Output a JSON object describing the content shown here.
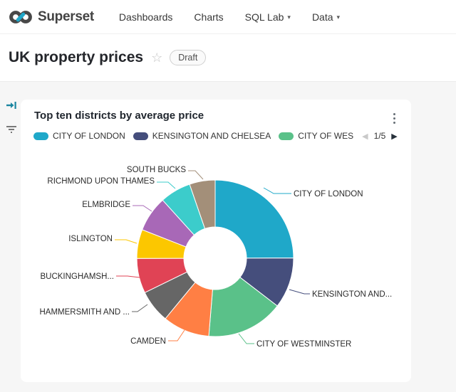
{
  "navbar": {
    "brand": "Superset",
    "items": [
      {
        "label": "Dashboards",
        "has_caret": false
      },
      {
        "label": "Charts",
        "has_caret": false
      },
      {
        "label": "SQL Lab",
        "has_caret": true
      },
      {
        "label": "Data",
        "has_caret": true
      }
    ]
  },
  "header": {
    "title": "UK property prices",
    "badge": "Draft"
  },
  "icons": {
    "star": "☆",
    "caret_down": "▾",
    "legend_prev": "◀",
    "legend_next": "▶"
  },
  "chart_data": {
    "type": "pie",
    "subtype": "donut",
    "title": "Top ten districts by average price",
    "categories": [
      "CITY OF LONDON",
      "KENSINGTON AND CHELSEA",
      "CITY OF WESTMINSTER",
      "CAMDEN",
      "HAMMERSMITH AND ...",
      "BUCKINGHAMSH...",
      "ISLINGTON",
      "ELMBRIDGE",
      "RICHMOND UPON THAMES",
      "SOUTH BUCKS"
    ],
    "values": [
      25.0,
      10.5,
      15.9,
      9.7,
      6.8,
      7.2,
      6.0,
      7.4,
      6.4,
      5.3
    ],
    "value_unit": "percent",
    "colors": [
      "#1FA8C9",
      "#454E7C",
      "#5AC189",
      "#FF7F44",
      "#666666",
      "#E04355",
      "#FCC700",
      "#A868B7",
      "#3CCCCB",
      "#A38F79"
    ],
    "slice_labels_shown": [
      "CITY OF LONDON",
      "KENSINGTON AND...",
      "CITY OF WESTMINSTER",
      "CAMDEN",
      "HAMMERSMITH AND ...",
      "BUCKINGHAMSH...",
      "ISLINGTON",
      "ELMBRIDGE",
      "RICHMOND UPON THAMES",
      "SOUTH BUCKS"
    ],
    "hole_radius_ratio": 0.4,
    "legend": {
      "position": "top",
      "visible_items": [
        {
          "label": "CITY OF LONDON",
          "color": "#1FA8C9"
        },
        {
          "label": "KENSINGTON AND CHELSEA",
          "color": "#454E7C"
        },
        {
          "label": "CITY OF WES",
          "color": "#5AC189"
        }
      ],
      "page": "1/5"
    }
  }
}
